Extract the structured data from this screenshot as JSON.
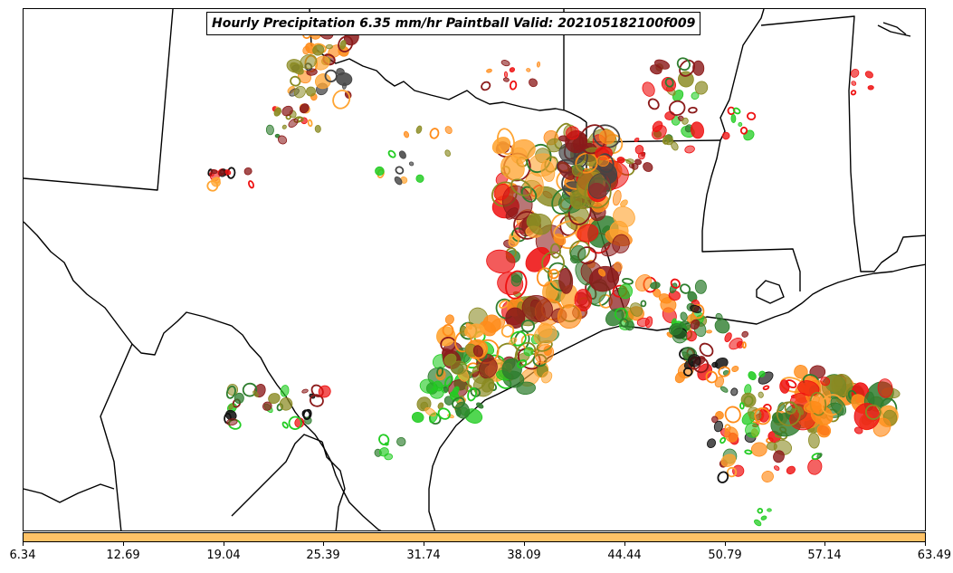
{
  "title": "Hourly Precipitation 6.35 mm/hr Paintball Valid: 202105182100f009",
  "colorbar": {
    "fill_color": "#ffc266",
    "tick_labels": [
      "6.34",
      "12.69",
      "19.04",
      "25.39",
      "31.74",
      "38.09",
      "44.44",
      "50.79",
      "57.14",
      "63.49"
    ]
  },
  "palette": {
    "red": "#ee1111",
    "dark_red": "#8b1a1a",
    "orange": "#ff8c1a",
    "light_orange": "#ffa533",
    "green": "#22cc22",
    "dark_green": "#2e7d2e",
    "olive": "#8a8a22",
    "dark_olive": "#6b6b10",
    "gray": "#444444",
    "black": "#111111"
  }
}
